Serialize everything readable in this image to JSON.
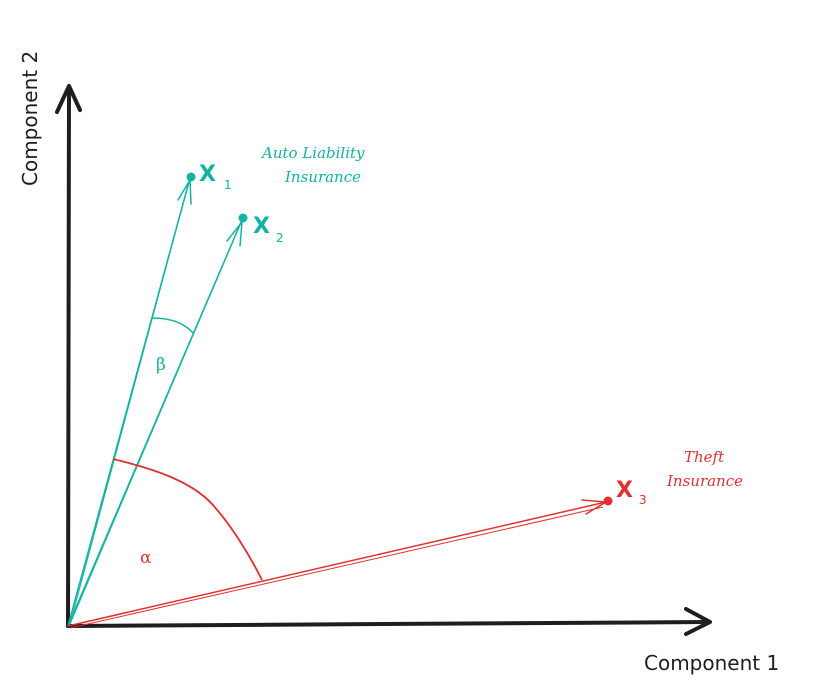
{
  "axes": {
    "x_label": "Component 1",
    "y_label": "Component 2"
  },
  "vectors": [
    {
      "id": "x1",
      "symbol": "X",
      "subscript": "1",
      "group": "auto"
    },
    {
      "id": "x2",
      "symbol": "X",
      "subscript": "2",
      "group": "auto"
    },
    {
      "id": "x3",
      "symbol": "X",
      "subscript": "3",
      "group": "theft"
    }
  ],
  "groups": {
    "auto": {
      "line1": "Auto Liability",
      "line2": "Insurance",
      "color": "#12b3a0"
    },
    "theft": {
      "line1": "Theft",
      "line2": "Insurance",
      "color": "#e03131"
    }
  },
  "angles": {
    "beta": "β",
    "alpha": "α"
  },
  "colors": {
    "axis": "#1e1e1e",
    "teal": "#12b3a0",
    "red": "#e03131"
  }
}
